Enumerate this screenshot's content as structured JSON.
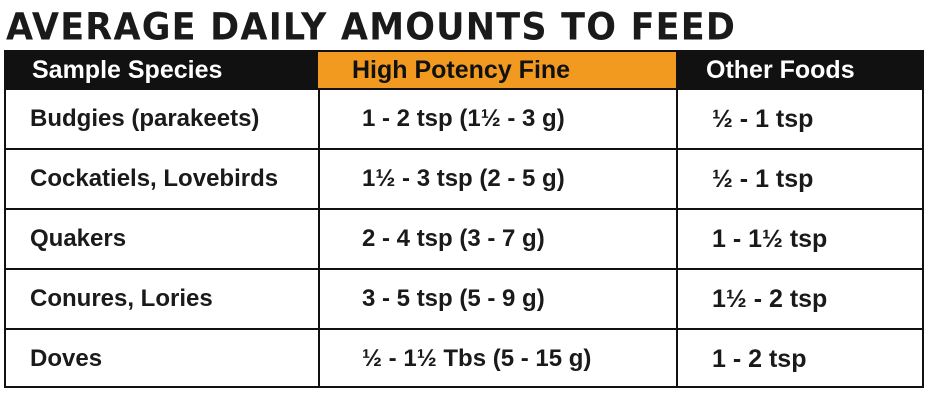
{
  "title": "AVERAGE DAILY AMOUNTS TO FEED",
  "headers": [
    "Sample Species",
    "High Potency Fine",
    "Other Foods"
  ],
  "colors": {
    "header_dark": "#111111",
    "header_accent": "#f29a1f",
    "text": "#1a1a1a"
  },
  "rows": [
    {
      "species": "Budgies (parakeets)",
      "high_potency": "1 - 2 tsp (1½  - 3 g)",
      "other": "½  - 1 tsp"
    },
    {
      "species": "Cockatiels, Lovebirds",
      "high_potency": "1½ - 3 tsp (2 - 5 g)",
      "other": "½  - 1 tsp"
    },
    {
      "species": "Quakers",
      "high_potency": "2 - 4 tsp (3 - 7 g)",
      "other": "1 - 1½ tsp"
    },
    {
      "species": "Conures, Lories",
      "high_potency": "3 - 5 tsp (5 - 9 g)",
      "other": "1½ - 2 tsp"
    },
    {
      "species": "Doves",
      "high_potency": "½ - 1½ Tbs  (5 - 15 g)",
      "other": "1 - 2 tsp"
    }
  ]
}
